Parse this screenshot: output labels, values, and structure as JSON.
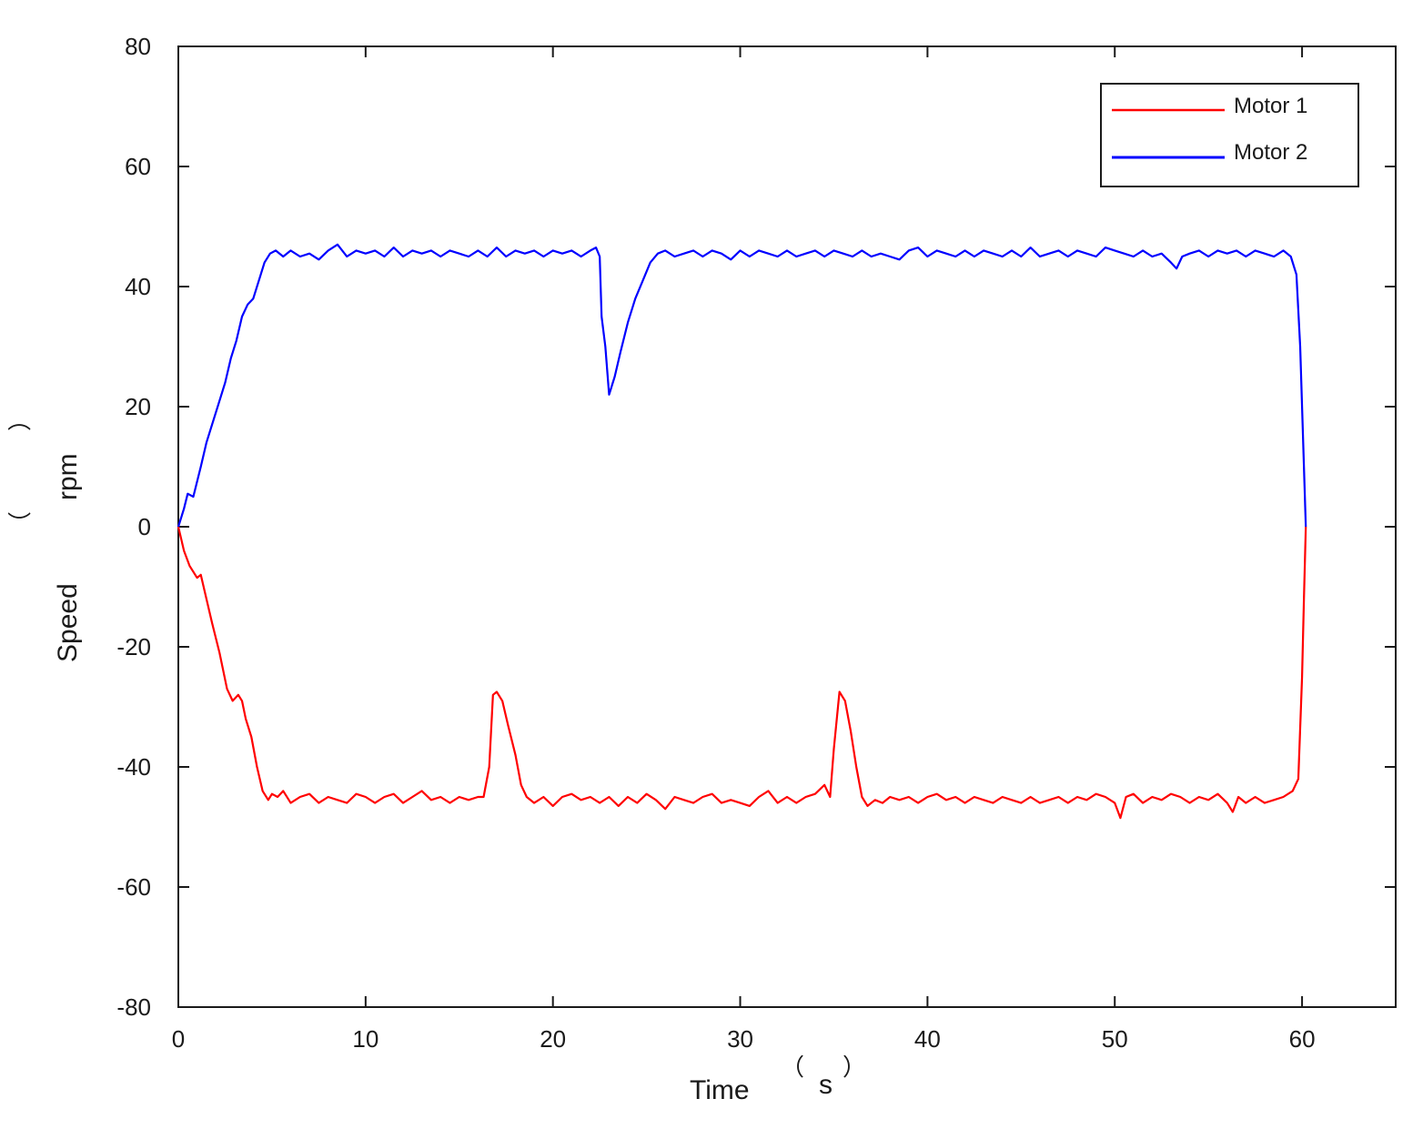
{
  "chart_data": {
    "type": "line",
    "title": "",
    "xlabel": {
      "main": "Time",
      "unit_open": "（",
      "unit": "s",
      "unit_close": "）"
    },
    "ylabel": {
      "main": "Speed",
      "unit_open": "（",
      "unit": "rpm",
      "unit_close": "）"
    },
    "xlim": [
      0,
      65
    ],
    "ylim": [
      -80,
      80
    ],
    "xticks": [
      0,
      10,
      20,
      30,
      40,
      50,
      60
    ],
    "yticks": [
      80,
      60,
      40,
      20,
      0,
      -20,
      -40,
      -60,
      -80
    ],
    "xtick_labels": [
      "0",
      "10",
      "20",
      "30",
      "40",
      "50",
      "60"
    ],
    "ytick_labels": [
      "80",
      "60",
      "40",
      "20",
      "0",
      "-20",
      "-40",
      "-60",
      "-80"
    ],
    "grid": false,
    "legend_position": "top-right",
    "series": [
      {
        "name": "Motor 1",
        "color": "#ff0000",
        "points": [
          [
            0,
            0
          ],
          [
            0.3,
            -4
          ],
          [
            0.6,
            -6.5
          ],
          [
            1.0,
            -8.5
          ],
          [
            1.2,
            -8
          ],
          [
            1.5,
            -12
          ],
          [
            1.8,
            -16
          ],
          [
            2.2,
            -21
          ],
          [
            2.6,
            -27
          ],
          [
            2.9,
            -29
          ],
          [
            3.2,
            -28
          ],
          [
            3.4,
            -29
          ],
          [
            3.6,
            -32
          ],
          [
            3.9,
            -35
          ],
          [
            4.2,
            -40
          ],
          [
            4.5,
            -44
          ],
          [
            4.8,
            -45.5
          ],
          [
            5.0,
            -44.5
          ],
          [
            5.3,
            -45
          ],
          [
            5.6,
            -44
          ],
          [
            6.0,
            -46
          ],
          [
            6.5,
            -45
          ],
          [
            7.0,
            -44.5
          ],
          [
            7.5,
            -46
          ],
          [
            8.0,
            -45
          ],
          [
            8.5,
            -45.5
          ],
          [
            9.0,
            -46
          ],
          [
            9.5,
            -44.5
          ],
          [
            10.0,
            -45
          ],
          [
            10.5,
            -46
          ],
          [
            11.0,
            -45
          ],
          [
            11.5,
            -44.5
          ],
          [
            12.0,
            -46
          ],
          [
            12.5,
            -45
          ],
          [
            13.0,
            -44
          ],
          [
            13.5,
            -45.5
          ],
          [
            14.0,
            -45
          ],
          [
            14.5,
            -46
          ],
          [
            15.0,
            -45
          ],
          [
            15.5,
            -45.5
          ],
          [
            16.0,
            -45
          ],
          [
            16.3,
            -45
          ],
          [
            16.6,
            -40
          ],
          [
            16.8,
            -28
          ],
          [
            17.0,
            -27.5
          ],
          [
            17.3,
            -29
          ],
          [
            17.6,
            -33
          ],
          [
            18.0,
            -38
          ],
          [
            18.3,
            -43
          ],
          [
            18.6,
            -45
          ],
          [
            19.0,
            -46
          ],
          [
            19.5,
            -45
          ],
          [
            20.0,
            -46.5
          ],
          [
            20.5,
            -45
          ],
          [
            21.0,
            -44.5
          ],
          [
            21.5,
            -45.5
          ],
          [
            22.0,
            -45
          ],
          [
            22.5,
            -46
          ],
          [
            23.0,
            -45
          ],
          [
            23.5,
            -46.5
          ],
          [
            24.0,
            -45
          ],
          [
            24.5,
            -46
          ],
          [
            25.0,
            -44.5
          ],
          [
            25.5,
            -45.5
          ],
          [
            26.0,
            -47
          ],
          [
            26.5,
            -45
          ],
          [
            27.0,
            -45.5
          ],
          [
            27.5,
            -46
          ],
          [
            28.0,
            -45
          ],
          [
            28.5,
            -44.5
          ],
          [
            29.0,
            -46
          ],
          [
            29.5,
            -45.5
          ],
          [
            30.0,
            -46
          ],
          [
            30.5,
            -46.5
          ],
          [
            31.0,
            -45
          ],
          [
            31.5,
            -44
          ],
          [
            32.0,
            -46
          ],
          [
            32.5,
            -45
          ],
          [
            33.0,
            -46
          ],
          [
            33.5,
            -45
          ],
          [
            34.0,
            -44.5
          ],
          [
            34.5,
            -43
          ],
          [
            34.8,
            -45
          ],
          [
            35.0,
            -37
          ],
          [
            35.3,
            -27.5
          ],
          [
            35.6,
            -29
          ],
          [
            35.9,
            -34
          ],
          [
            36.2,
            -40
          ],
          [
            36.5,
            -45
          ],
          [
            36.8,
            -46.5
          ],
          [
            37.2,
            -45.5
          ],
          [
            37.6,
            -46
          ],
          [
            38.0,
            -45
          ],
          [
            38.5,
            -45.5
          ],
          [
            39.0,
            -45
          ],
          [
            39.5,
            -46
          ],
          [
            40.0,
            -45
          ],
          [
            40.5,
            -44.5
          ],
          [
            41.0,
            -45.5
          ],
          [
            41.5,
            -45
          ],
          [
            42.0,
            -46
          ],
          [
            42.5,
            -45
          ],
          [
            43.0,
            -45.5
          ],
          [
            43.5,
            -46
          ],
          [
            44.0,
            -45
          ],
          [
            44.5,
            -45.5
          ],
          [
            45.0,
            -46
          ],
          [
            45.5,
            -45
          ],
          [
            46.0,
            -46
          ],
          [
            46.5,
            -45.5
          ],
          [
            47.0,
            -45
          ],
          [
            47.5,
            -46
          ],
          [
            48.0,
            -45
          ],
          [
            48.5,
            -45.5
          ],
          [
            49.0,
            -44.5
          ],
          [
            49.5,
            -45
          ],
          [
            50.0,
            -46
          ],
          [
            50.3,
            -48.5
          ],
          [
            50.6,
            -45
          ],
          [
            51.0,
            -44.5
          ],
          [
            51.5,
            -46
          ],
          [
            52.0,
            -45
          ],
          [
            52.5,
            -45.5
          ],
          [
            53.0,
            -44.5
          ],
          [
            53.5,
            -45
          ],
          [
            54.0,
            -46
          ],
          [
            54.5,
            -45
          ],
          [
            55.0,
            -45.5
          ],
          [
            55.5,
            -44.5
          ],
          [
            56.0,
            -46
          ],
          [
            56.3,
            -47.5
          ],
          [
            56.6,
            -45
          ],
          [
            57.0,
            -46
          ],
          [
            57.5,
            -45
          ],
          [
            58.0,
            -46
          ],
          [
            58.5,
            -45.5
          ],
          [
            59.0,
            -45
          ],
          [
            59.5,
            -44
          ],
          [
            59.8,
            -42
          ],
          [
            60.0,
            -25
          ],
          [
            60.1,
            -12
          ],
          [
            60.2,
            0
          ]
        ]
      },
      {
        "name": "Motor 2",
        "color": "#0000ff",
        "points": [
          [
            0,
            0
          ],
          [
            0.3,
            3
          ],
          [
            0.5,
            5.5
          ],
          [
            0.8,
            5
          ],
          [
            1.2,
            10
          ],
          [
            1.5,
            14
          ],
          [
            1.8,
            17
          ],
          [
            2.2,
            21
          ],
          [
            2.5,
            24
          ],
          [
            2.8,
            28
          ],
          [
            3.1,
            31
          ],
          [
            3.4,
            35
          ],
          [
            3.7,
            37
          ],
          [
            4.0,
            38
          ],
          [
            4.3,
            41
          ],
          [
            4.6,
            44
          ],
          [
            4.9,
            45.5
          ],
          [
            5.2,
            46
          ],
          [
            5.6,
            45
          ],
          [
            6.0,
            46
          ],
          [
            6.5,
            45
          ],
          [
            7.0,
            45.5
          ],
          [
            7.5,
            44.5
          ],
          [
            8.0,
            46
          ],
          [
            8.5,
            47
          ],
          [
            9.0,
            45
          ],
          [
            9.5,
            46
          ],
          [
            10.0,
            45.5
          ],
          [
            10.5,
            46
          ],
          [
            11.0,
            45
          ],
          [
            11.5,
            46.5
          ],
          [
            12.0,
            45
          ],
          [
            12.5,
            46
          ],
          [
            13.0,
            45.5
          ],
          [
            13.5,
            46
          ],
          [
            14.0,
            45
          ],
          [
            14.5,
            46
          ],
          [
            15.0,
            45.5
          ],
          [
            15.5,
            45
          ],
          [
            16.0,
            46
          ],
          [
            16.5,
            45
          ],
          [
            17.0,
            46.5
          ],
          [
            17.5,
            45
          ],
          [
            18.0,
            46
          ],
          [
            18.5,
            45.5
          ],
          [
            19.0,
            46
          ],
          [
            19.5,
            45
          ],
          [
            20.0,
            46
          ],
          [
            20.5,
            45.5
          ],
          [
            21.0,
            46
          ],
          [
            21.5,
            45
          ],
          [
            22.0,
            46
          ],
          [
            22.3,
            46.5
          ],
          [
            22.5,
            45
          ],
          [
            22.6,
            35
          ],
          [
            22.8,
            30
          ],
          [
            23.0,
            22
          ],
          [
            23.3,
            25
          ],
          [
            23.6,
            29
          ],
          [
            24.0,
            34
          ],
          [
            24.4,
            38
          ],
          [
            24.8,
            41
          ],
          [
            25.2,
            44
          ],
          [
            25.6,
            45.5
          ],
          [
            26.0,
            46
          ],
          [
            26.5,
            45
          ],
          [
            27.0,
            45.5
          ],
          [
            27.5,
            46
          ],
          [
            28.0,
            45
          ],
          [
            28.5,
            46
          ],
          [
            29.0,
            45.5
          ],
          [
            29.5,
            44.5
          ],
          [
            30.0,
            46
          ],
          [
            30.5,
            45
          ],
          [
            31.0,
            46
          ],
          [
            31.5,
            45.5
          ],
          [
            32.0,
            45
          ],
          [
            32.5,
            46
          ],
          [
            33.0,
            45
          ],
          [
            33.5,
            45.5
          ],
          [
            34.0,
            46
          ],
          [
            34.5,
            45
          ],
          [
            35.0,
            46
          ],
          [
            35.5,
            45.5
          ],
          [
            36.0,
            45
          ],
          [
            36.5,
            46
          ],
          [
            37.0,
            45
          ],
          [
            37.5,
            45.5
          ],
          [
            38.0,
            45
          ],
          [
            38.5,
            44.5
          ],
          [
            39.0,
            46
          ],
          [
            39.5,
            46.5
          ],
          [
            40.0,
            45
          ],
          [
            40.5,
            46
          ],
          [
            41.0,
            45.5
          ],
          [
            41.5,
            45
          ],
          [
            42.0,
            46
          ],
          [
            42.5,
            45
          ],
          [
            43.0,
            46
          ],
          [
            43.5,
            45.5
          ],
          [
            44.0,
            45
          ],
          [
            44.5,
            46
          ],
          [
            45.0,
            45
          ],
          [
            45.5,
            46.5
          ],
          [
            46.0,
            45
          ],
          [
            46.5,
            45.5
          ],
          [
            47.0,
            46
          ],
          [
            47.5,
            45
          ],
          [
            48.0,
            46
          ],
          [
            48.5,
            45.5
          ],
          [
            49.0,
            45
          ],
          [
            49.5,
            46.5
          ],
          [
            50.0,
            46
          ],
          [
            50.5,
            45.5
          ],
          [
            51.0,
            45
          ],
          [
            51.5,
            46
          ],
          [
            52.0,
            45
          ],
          [
            52.5,
            45.5
          ],
          [
            53.0,
            44
          ],
          [
            53.3,
            43
          ],
          [
            53.6,
            45
          ],
          [
            54.0,
            45.5
          ],
          [
            54.5,
            46
          ],
          [
            55.0,
            45
          ],
          [
            55.5,
            46
          ],
          [
            56.0,
            45.5
          ],
          [
            56.5,
            46
          ],
          [
            57.0,
            45
          ],
          [
            57.5,
            46
          ],
          [
            58.0,
            45.5
          ],
          [
            58.5,
            45
          ],
          [
            59.0,
            46
          ],
          [
            59.4,
            45
          ],
          [
            59.7,
            42
          ],
          [
            59.9,
            30
          ],
          [
            60.0,
            20
          ],
          [
            60.1,
            10
          ],
          [
            60.2,
            0
          ]
        ]
      }
    ]
  }
}
